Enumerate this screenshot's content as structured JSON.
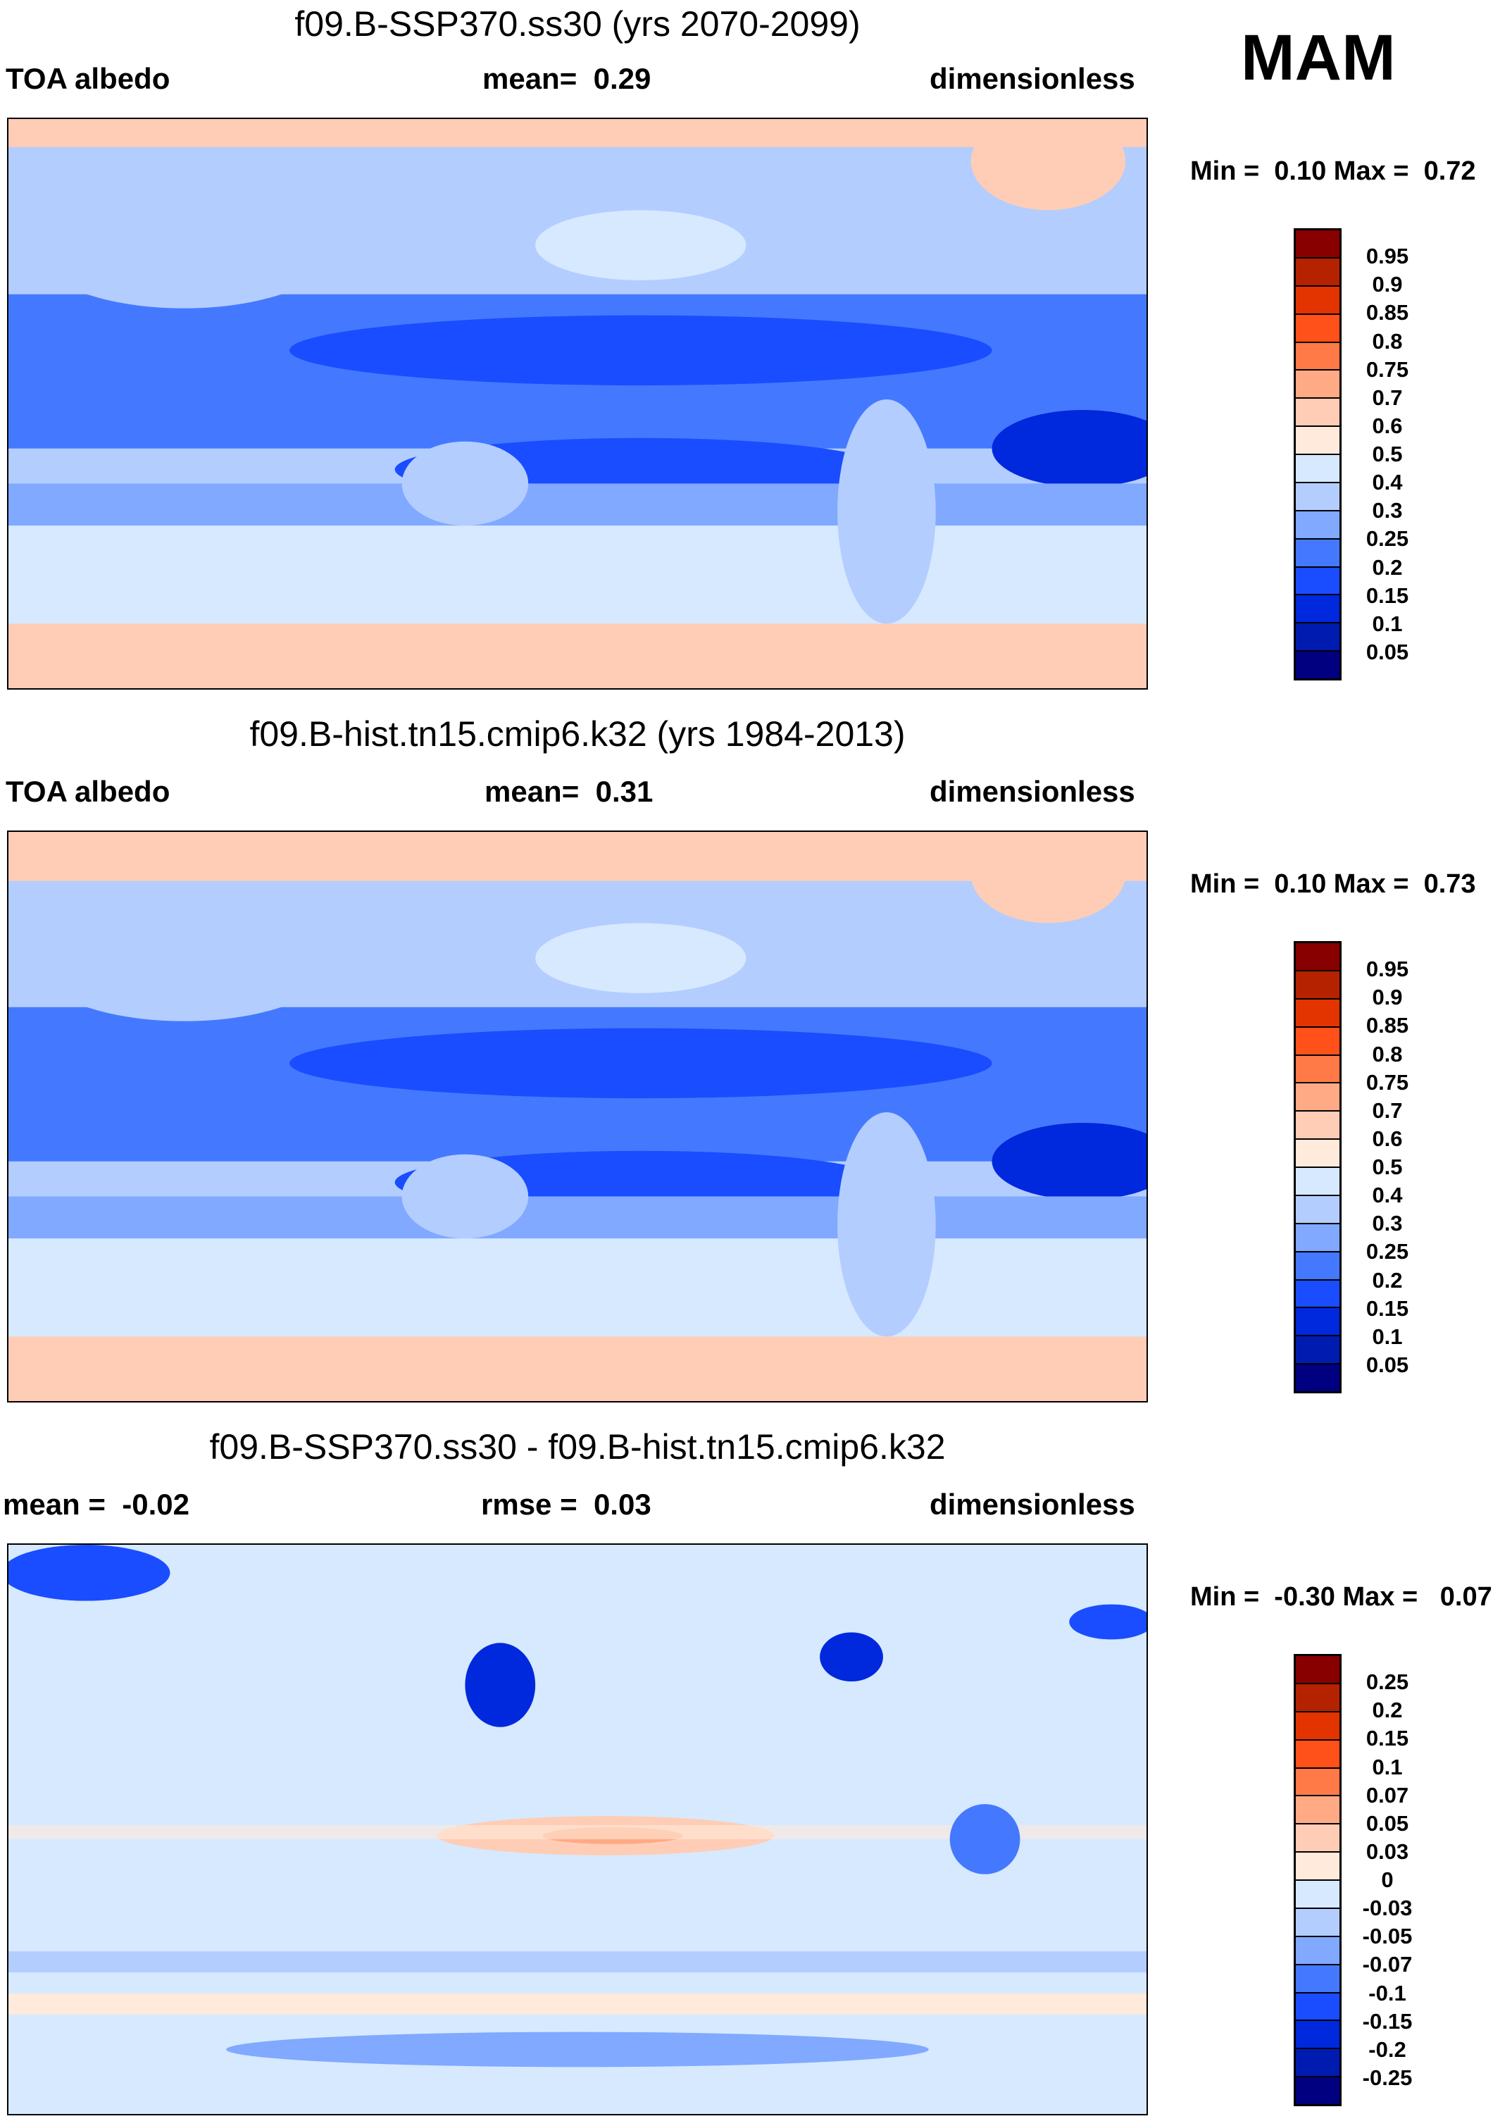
{
  "season": "MAM",
  "panels": [
    {
      "title": "f09.B-SSP370.ss30 (yrs 2070-2099)",
      "left": "TOA albedo",
      "center": "mean=  0.29",
      "right": "dimensionless",
      "minmax": "Min =  0.10 Max =  0.72",
      "labels": [
        "0.95",
        "0.9",
        "0.85",
        "0.8",
        "0.75",
        "0.7",
        "0.6",
        "0.5",
        "0.4",
        "0.3",
        "0.25",
        "0.2",
        "0.15",
        "0.1",
        "0.05"
      ]
    },
    {
      "title": "f09.B-hist.tn15.cmip6.k32 (yrs 1984-2013)",
      "left": "TOA albedo",
      "center": "mean=  0.31",
      "right": "dimensionless",
      "minmax": "Min =  0.10 Max =  0.73",
      "labels": [
        "0.95",
        "0.9",
        "0.85",
        "0.8",
        "0.75",
        "0.7",
        "0.6",
        "0.5",
        "0.4",
        "0.3",
        "0.25",
        "0.2",
        "0.15",
        "0.1",
        "0.05"
      ]
    },
    {
      "title": "f09.B-SSP370.ss30 - f09.B-hist.tn15.cmip6.k32",
      "left": "mean =  -0.02",
      "center": "rmse =  0.03",
      "right": "dimensionless",
      "minmax": "Min =  -0.30 Max =   0.07",
      "labels": [
        "0.25",
        "0.2",
        "0.15",
        "0.1",
        "0.07",
        "0.05",
        "0.03",
        "0",
        "-0.03",
        "-0.05",
        "-0.07",
        "-0.1",
        "-0.15",
        "-0.2",
        "-0.25"
      ]
    }
  ],
  "colors": [
    "#880000",
    "#b52200",
    "#e33400",
    "#ff5119",
    "#ff7a46",
    "#ffaa85",
    "#ffcdb5",
    "#ffeadb",
    "#d6e9ff",
    "#b3cdff",
    "#80a9ff",
    "#4479ff",
    "#1a4dff",
    "#0028dd",
    "#001cb0",
    "#000080"
  ]
}
